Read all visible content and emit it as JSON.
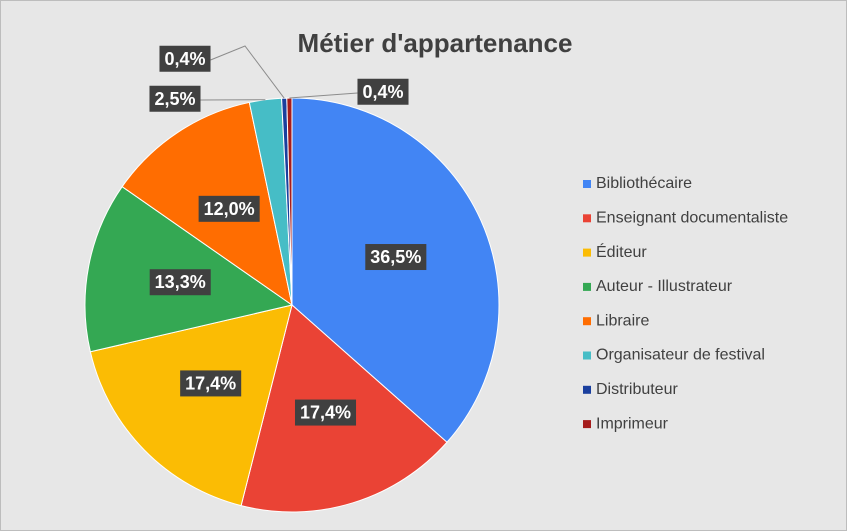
{
  "chart_data": {
    "type": "pie",
    "title": "Métier d'appartenance",
    "categories": [
      "Bibliothécaire",
      "Enseignant documentaliste",
      "Éditeur",
      "Auteur - Illustrateur",
      "Libraire",
      "Organisateur de festival",
      "Distributeur",
      "Imprimeur"
    ],
    "values": [
      36.5,
      17.4,
      17.4,
      13.3,
      12.0,
      2.5,
      0.4,
      0.4
    ],
    "value_labels": [
      "36,5%",
      "17,4%",
      "17,4%",
      "13,3%",
      "12,0%",
      "2,5%",
      "0,4%",
      "0,4%"
    ],
    "colors": [
      "#4285f4",
      "#ea4335",
      "#fbbc04",
      "#34a853",
      "#ff6d01",
      "#46bdc6",
      "#1a3f9e",
      "#a51c1c"
    ],
    "legend": "right"
  }
}
